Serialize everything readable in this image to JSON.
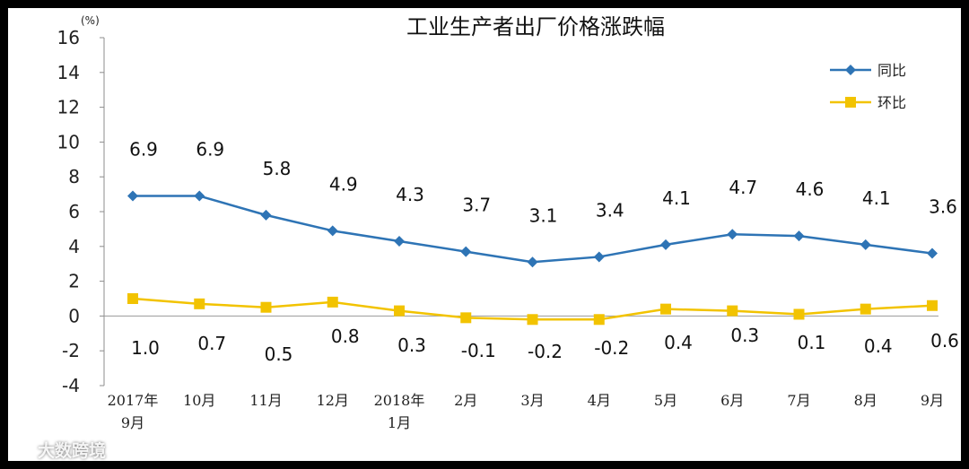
{
  "chart_data": {
    "type": "line",
    "title": "工业生产者出厂价格涨跌幅",
    "y_unit": "(%)",
    "ylim": [
      -4,
      16
    ],
    "yticks": [
      16,
      14,
      12,
      10,
      8,
      6,
      4,
      2,
      0,
      -2,
      -4
    ],
    "categories": [
      [
        "2017年",
        "9月"
      ],
      [
        "10月"
      ],
      [
        "11月"
      ],
      [
        "12月"
      ],
      [
        "2018年",
        "1月"
      ],
      [
        "2月"
      ],
      [
        "3月"
      ],
      [
        "4月"
      ],
      [
        "5月"
      ],
      [
        "6月"
      ],
      [
        "7月"
      ],
      [
        "8月"
      ],
      [
        "9月"
      ]
    ],
    "series": [
      {
        "name": "同比",
        "color": "#2e74b5",
        "marker": "diamond",
        "values": [
          6.9,
          6.9,
          5.8,
          4.9,
          4.3,
          3.7,
          3.1,
          3.4,
          4.1,
          4.7,
          4.6,
          4.1,
          3.6
        ],
        "labels": [
          "6.9",
          "6.9",
          "5.8",
          "4.9",
          "4.3",
          "3.7",
          "3.1",
          "3.4",
          "4.1",
          "4.7",
          "4.6",
          "4.1",
          "3.6"
        ]
      },
      {
        "name": "环比",
        "color": "#f2c300",
        "marker": "square",
        "values": [
          1.0,
          0.7,
          0.5,
          0.8,
          0.3,
          -0.1,
          -0.2,
          -0.2,
          0.4,
          0.3,
          0.1,
          0.4,
          0.6
        ],
        "labels": [
          "1.0",
          "0.7",
          "0.5",
          "0.8",
          "0.3",
          "-0.1",
          "-0.2",
          "-0.2",
          "0.4",
          "0.3",
          "0.1",
          "0.4",
          "0.6"
        ]
      }
    ],
    "legend_position": "top-right",
    "grid": false
  },
  "watermark": "大数跨境"
}
